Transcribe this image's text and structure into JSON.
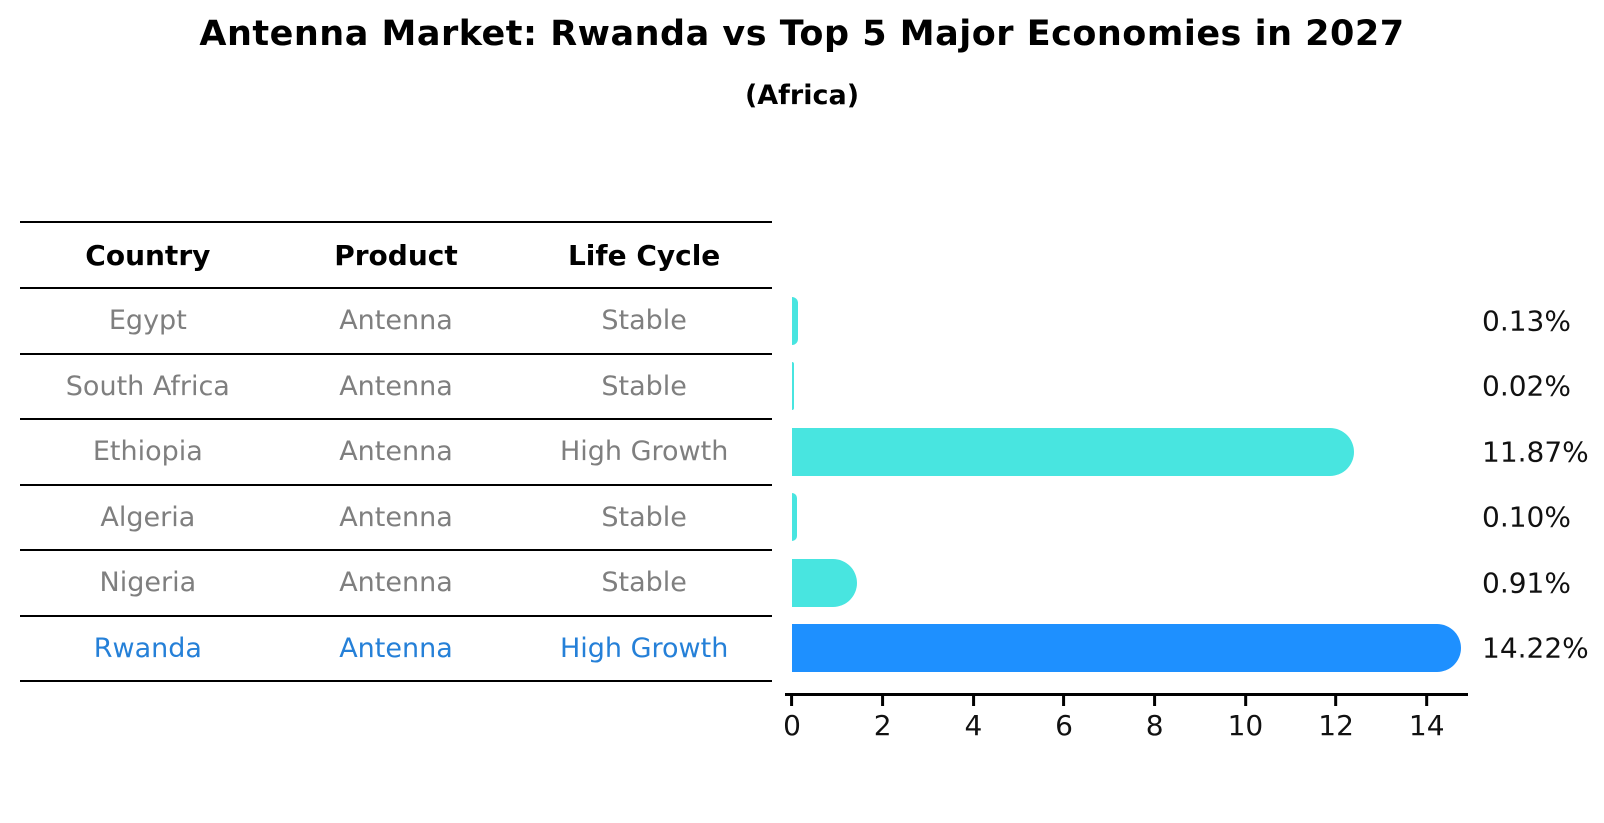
{
  "title": "Antenna Market: Rwanda vs Top 5 Major Economies in 2027",
  "subtitle": "(Africa)",
  "table": {
    "headers": {
      "country": "Country",
      "product": "Product",
      "life_cycle": "Life Cycle"
    },
    "rows": [
      {
        "country": "Egypt",
        "product": "Antenna",
        "life_cycle": "Stable",
        "highlight": false
      },
      {
        "country": "South Africa",
        "product": "Antenna",
        "life_cycle": "Stable",
        "highlight": false
      },
      {
        "country": "Ethiopia",
        "product": "Antenna",
        "life_cycle": "High Growth",
        "highlight": false
      },
      {
        "country": "Algeria",
        "product": "Antenna",
        "life_cycle": "Stable",
        "highlight": false
      },
      {
        "country": "Nigeria",
        "product": "Antenna",
        "life_cycle": "Stable",
        "highlight": false
      },
      {
        "country": "Rwanda",
        "product": "Antenna",
        "life_cycle": "High Growth",
        "highlight": true
      }
    ]
  },
  "chart_data": {
    "type": "bar",
    "orientation": "horizontal",
    "title": "Antenna Market: Rwanda vs Top 5 Major Economies in 2027",
    "subtitle": "(Africa)",
    "categories": [
      "Egypt",
      "South Africa",
      "Ethiopia",
      "Algeria",
      "Nigeria",
      "Rwanda"
    ],
    "values": [
      0.13,
      0.02,
      11.87,
      0.1,
      0.91,
      14.22
    ],
    "value_labels": [
      "0.13%",
      "0.02%",
      "11.87%",
      "0.10%",
      "0.91%",
      "14.22%"
    ],
    "xlabel": "",
    "ylabel": "",
    "xlim": [
      0,
      15
    ],
    "xticks": [
      0,
      2,
      4,
      6,
      8,
      10,
      12,
      14
    ],
    "grid": false,
    "legend": false,
    "bar_color": "#48E5E0",
    "highlight_color": "#1E90FF",
    "highlight_index": 5,
    "highlight_text_color": "#2580D8"
  }
}
